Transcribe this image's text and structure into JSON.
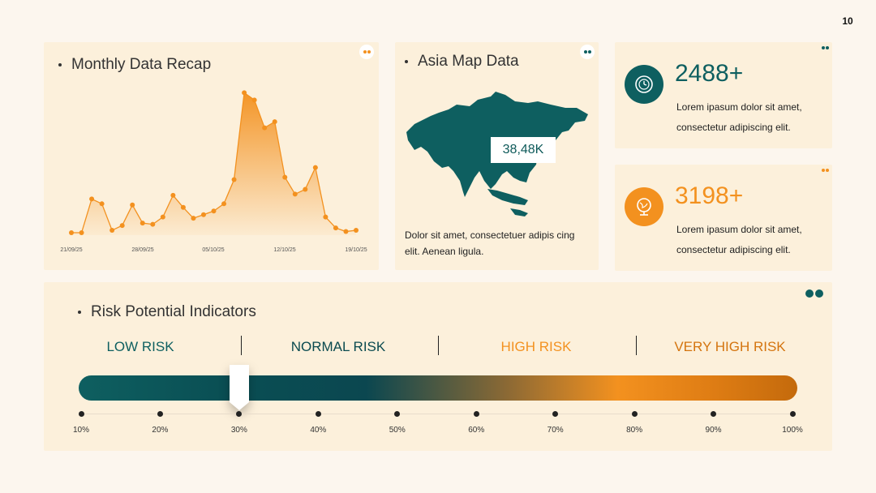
{
  "page_number": "10",
  "chart_card": {
    "title": "Monthly Data Recap",
    "dots_colors": [
      "#f3911f",
      "#f3911f"
    ]
  },
  "chart_data": {
    "type": "area",
    "title": "Monthly Data Recap",
    "x_tick_labels": [
      "21/09/25",
      "28/09/25",
      "05/10/25",
      "12/10/25",
      "19/10/25"
    ],
    "values": [
      2,
      2,
      30,
      26,
      4,
      8,
      25,
      10,
      9,
      15,
      33,
      23,
      14,
      17,
      20,
      26,
      46,
      118,
      112,
      89,
      94,
      48,
      34,
      38,
      56,
      15,
      6,
      3,
      4
    ],
    "ylim": [
      0,
      125
    ],
    "series_color": "#f3911f",
    "grid": false
  },
  "map_card": {
    "title": "Asia Map Data",
    "label": "38,48K",
    "description": "Dolor sit amet, consectetuer adipis cing elit. Aenean ligula.",
    "map_color": "#0e5f60",
    "dots_colors": [
      "#0e5f60",
      "#0e5f60"
    ]
  },
  "stats": [
    {
      "value": "2488+",
      "description": "Lorem ipasum dolor sit amet, consectetur adipiscing elit.",
      "color": "#0e5f60",
      "icon": "clock-icon",
      "dots_colors": [
        "#0e5f60",
        "#0e5f60"
      ]
    },
    {
      "value": "3198+",
      "description": "Lorem ipasum dolor sit amet, consectetur adipiscing elit.",
      "color": "#f3911f",
      "icon": "globe-icon",
      "dots_colors": [
        "#f3911f",
        "#f3911f"
      ]
    }
  ],
  "risk": {
    "title": "Risk Potential Indicators",
    "levels": [
      {
        "label": "LOW RISK",
        "color": "#0e5f60"
      },
      {
        "label": "NORMAL RISK",
        "color": "#0a4a4f"
      },
      {
        "label": "HIGH RISK",
        "color": "#f3911f"
      },
      {
        "label": "VERY HIGH RISK",
        "color": "#d4740e"
      }
    ],
    "scale": [
      "10%",
      "20%",
      "30%",
      "40%",
      "50%",
      "60%",
      "70%",
      "80%",
      "90%",
      "100%"
    ],
    "marker_value": "30%",
    "dots_colors": [
      "#0e5f60",
      "#0e5f60"
    ]
  }
}
